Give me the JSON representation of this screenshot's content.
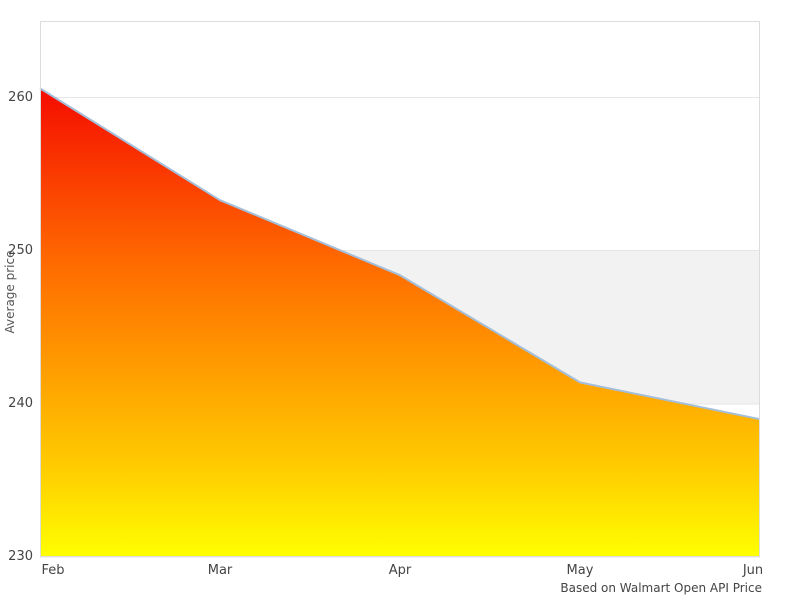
{
  "chart_data": {
    "type": "area",
    "categories": [
      "Feb",
      "Mar",
      "Apr",
      "May",
      "Jun"
    ],
    "values": [
      260.6,
      253.3,
      248.4,
      241.4,
      239.0
    ],
    "ylabel": "Average price",
    "ylim": [
      230,
      265
    ],
    "yticks": [
      230,
      240,
      250,
      260
    ],
    "grid": "horizontal",
    "legend": "none",
    "plot_band": {
      "from": 240,
      "to": 250,
      "color": "#f2f2f2"
    },
    "colors": {
      "line": "#a4bfda",
      "gridline": "#e6e6e6",
      "plot_border": "#dcdcdc",
      "tick_text": "#444444"
    },
    "area_gradient": [
      {
        "offset": 0,
        "color": "#e10000"
      },
      {
        "offset": 0.12,
        "color": "#f50a00"
      },
      {
        "offset": 0.45,
        "color": "#ff6a00"
      },
      {
        "offset": 0.84,
        "color": "#ffce00"
      },
      {
        "offset": 1,
        "color": "#ffff00"
      }
    ],
    "caption": "Based on Walmart Open API Price"
  }
}
